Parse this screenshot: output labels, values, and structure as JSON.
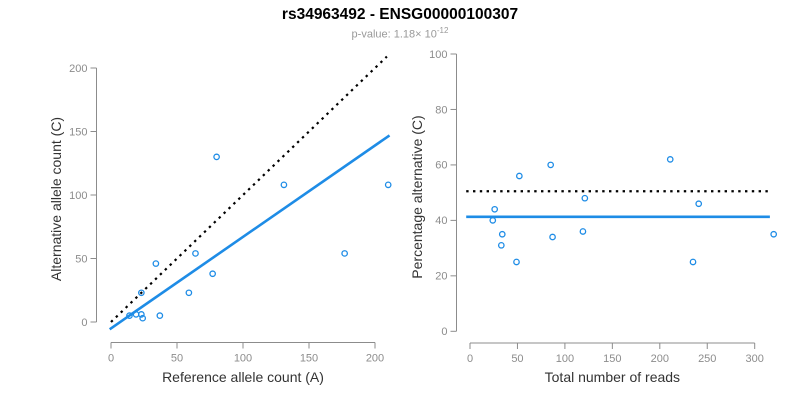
{
  "title": "rs34963492 - ENSG00000100307",
  "subtitle": {
    "text": "p-value: 1.18× 10",
    "exponent": "-12"
  },
  "colors": {
    "blue": "#1E8CE6",
    "black": "#000000",
    "axis": "#8C8C8C",
    "tick_label": "#8C8C8C",
    "axis_title": "#333333",
    "subtitle_gray": "#999999",
    "background": "#FFFFFF"
  },
  "chart_data": [
    {
      "type": "scatter",
      "name": "allele-counts-panel",
      "xlabel": "Reference allele count (A)",
      "ylabel": "Alternative allele count (C)",
      "xlim": [
        0,
        200
      ],
      "ylim": [
        0,
        200
      ],
      "xticks": [
        0,
        50,
        100,
        150,
        200
      ],
      "yticks": [
        0,
        50,
        100,
        150,
        200
      ],
      "grid": false,
      "legend": "none",
      "points": [
        [
          14,
          5
        ],
        [
          19,
          6
        ],
        [
          23,
          6
        ],
        [
          24,
          3
        ],
        [
          37,
          5
        ],
        [
          23,
          23
        ],
        [
          34,
          46
        ],
        [
          59,
          23
        ],
        [
          64,
          54
        ],
        [
          77,
          38
        ],
        [
          80,
          130
        ],
        [
          131,
          108
        ],
        [
          177,
          54
        ],
        [
          210,
          108
        ]
      ],
      "lines": [
        {
          "name": "identity-line",
          "dashed": true,
          "color": "black",
          "slope": 1,
          "intercept": 0,
          "x1": 0,
          "x2": 209,
          "width": 2.2
        },
        {
          "name": "regression-line",
          "dashed": false,
          "color": "blue",
          "slope": 0.72,
          "intercept": -5,
          "x1": -1,
          "x2": 211,
          "width": 2.6
        }
      ]
    },
    {
      "type": "scatter",
      "name": "percentage-panel",
      "xlabel": "Total number of reads",
      "ylabel": "Percentage alternative (C)",
      "xlim": [
        0,
        320
      ],
      "ylim": [
        0,
        100
      ],
      "xticks": [
        0,
        50,
        100,
        150,
        200,
        250,
        300
      ],
      "yticks": [
        0,
        20,
        40,
        60,
        80,
        100
      ],
      "grid": false,
      "legend": "none",
      "points": [
        [
          24,
          40
        ],
        [
          26,
          44
        ],
        [
          33,
          31
        ],
        [
          34,
          35
        ],
        [
          49,
          25
        ],
        [
          52,
          56
        ],
        [
          85,
          60
        ],
        [
          87,
          34
        ],
        [
          119,
          36
        ],
        [
          121,
          48
        ],
        [
          211,
          62
        ],
        [
          235,
          25
        ],
        [
          241,
          46
        ],
        [
          320,
          35
        ]
      ],
      "lines": [
        {
          "name": "fifty-percent-line",
          "dashed": true,
          "color": "black",
          "slope": 0,
          "intercept": 50.5,
          "x1": -4,
          "x2": 316,
          "width": 2.2
        },
        {
          "name": "mean-percentage-line",
          "dashed": false,
          "color": "blue",
          "slope": 0,
          "intercept": 41.3,
          "x1": -4,
          "x2": 316,
          "width": 2.6
        }
      ]
    }
  ]
}
